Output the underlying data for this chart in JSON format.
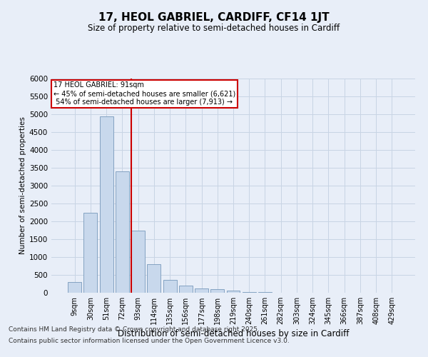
{
  "title": "17, HEOL GABRIEL, CARDIFF, CF14 1JT",
  "subtitle": "Size of property relative to semi-detached houses in Cardiff",
  "xlabel": "Distribution of semi-detached houses by size in Cardiff",
  "ylabel": "Number of semi-detached properties",
  "bins": [
    "9sqm",
    "30sqm",
    "51sqm",
    "72sqm",
    "93sqm",
    "114sqm",
    "135sqm",
    "156sqm",
    "177sqm",
    "198sqm",
    "219sqm",
    "240sqm",
    "261sqm",
    "282sqm",
    "303sqm",
    "324sqm",
    "345sqm",
    "366sqm",
    "387sqm",
    "408sqm",
    "429sqm"
  ],
  "bar_heights": [
    300,
    2250,
    4950,
    3400,
    1750,
    800,
    370,
    200,
    130,
    100,
    60,
    30,
    15,
    10,
    5,
    3,
    2,
    1,
    1,
    0,
    0
  ],
  "bar_color": "#c8d8ec",
  "bar_edge_color": "#7799bb",
  "property_label": "17 HEOL GABRIEL: 91sqm",
  "pct_smaller": 45,
  "pct_larger": 54,
  "n_smaller": 6621,
  "n_larger": 7913,
  "vline_color": "#cc0000",
  "annotation_box_color": "#cc0000",
  "grid_color": "#c8d4e4",
  "bg_color": "#e8eef8",
  "ylim": [
    0,
    6000
  ],
  "yticks": [
    0,
    500,
    1000,
    1500,
    2000,
    2500,
    3000,
    3500,
    4000,
    4500,
    5000,
    5500,
    6000
  ],
  "vline_x": 3.57,
  "footer_line1": "Contains HM Land Registry data © Crown copyright and database right 2025.",
  "footer_line2": "Contains public sector information licensed under the Open Government Licence v3.0."
}
